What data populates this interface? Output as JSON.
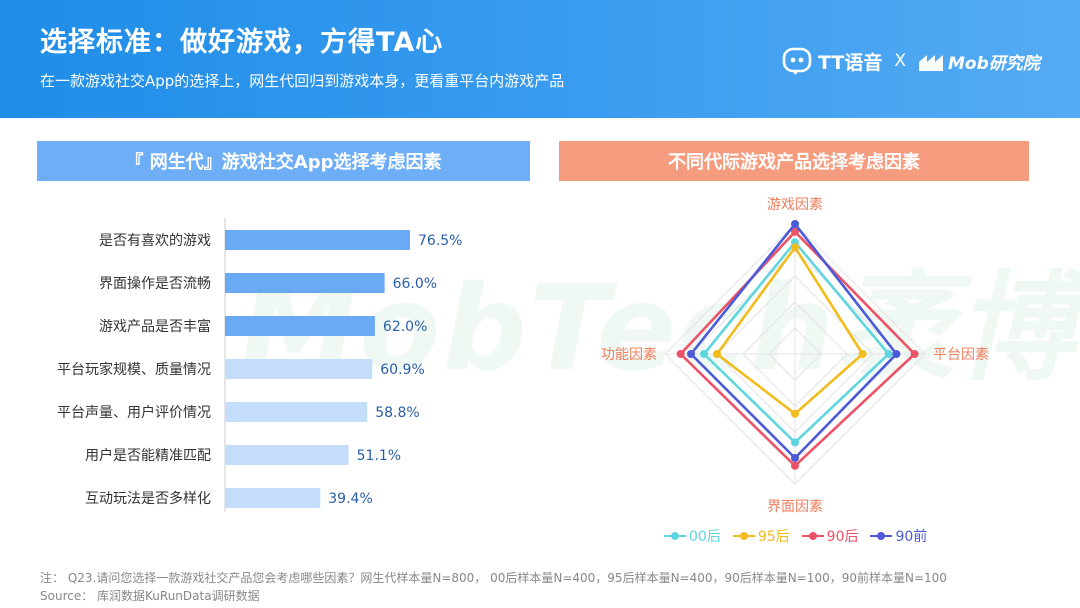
{
  "header": {
    "title": "选择标准：做好游戏，方得TA心",
    "subtitle": "在一款游戏社交App的选择上，网生代回归到游戏本身，更看重平台内游戏产品",
    "brand_tt": "TT语音",
    "brand_sep": "X",
    "brand_mob": "Mob研究院"
  },
  "watermark": "MobTech袤博",
  "left_panel": {
    "title": "『 网生代』游戏社交App选择考虑因素"
  },
  "right_panel": {
    "title": "不同代际游戏产品选择考虑因素"
  },
  "chart_data": [
    {
      "type": "bar",
      "orientation": "horizontal",
      "title": "『 网生代』游戏社交App选择考虑因素",
      "categories": [
        "是否有喜欢的游戏",
        "界面操作是否流畅",
        "游戏产品是否丰富",
        "平台玩家规模、质量情况",
        "平台声量、用户评价情况",
        "用户是否能精准匹配",
        "互动玩法是否多样化"
      ],
      "values": [
        76.5,
        66.0,
        62.0,
        60.9,
        58.8,
        51.1,
        39.4
      ],
      "labels": [
        "76.5%",
        "66.0%",
        "62.0%",
        "60.9%",
        "58.8%",
        "51.1%",
        "39.4%"
      ],
      "highlight_count": 3,
      "colors": {
        "highlight": "#6aaaf5",
        "normal": "#c3ddfb",
        "label": "#2a5fa8",
        "axis": "#cccccc"
      },
      "xlim": [
        0,
        100
      ]
    },
    {
      "type": "radar",
      "title": "不同代际游戏产品选择考虑因素",
      "axes": [
        "游戏因素",
        "平台因素",
        "界面因素",
        "功能因素"
      ],
      "range": [
        0,
        100
      ],
      "series": [
        {
          "name": "00后",
          "color": "#5fd6df",
          "values": [
            86,
            72,
            68,
            70
          ]
        },
        {
          "name": "95后",
          "color": "#f2bc1c",
          "values": [
            82,
            52,
            46,
            60
          ]
        },
        {
          "name": "90后",
          "color": "#ee5266",
          "values": [
            94,
            92,
            86,
            88
          ]
        },
        {
          "name": "90前",
          "color": "#4b5ad8",
          "values": [
            100,
            78,
            80,
            80
          ]
        }
      ],
      "axis_label_color": "#f07d5d"
    }
  ],
  "footer": {
    "note": "注：  Q23.请问您选择一款游戏社交产品您会考虑哪些因素？网生代样本量N=800，  00后样本量N=400，95后样本量N=400，90后样本量N=100，90前样本量N=100",
    "source": "Source：  库润数据KuRunData调研数据"
  }
}
